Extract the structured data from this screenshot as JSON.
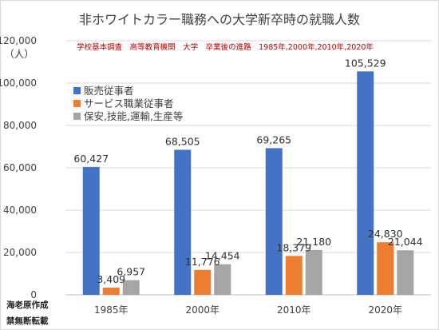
{
  "chart_data": {
    "type": "bar",
    "title": "非ホワイトカラー職務への大学新卒時の就職人数",
    "subtitle": "学校基本調査　高等教育機関　大学　卒業後の進路　1985年,2000年,2010年,2020年",
    "ylabel": "（人）",
    "xlabel": "",
    "categories": [
      "1985年",
      "2000年",
      "2010年",
      "2020年"
    ],
    "series": [
      {
        "name": "販売従事者",
        "color": "#4472c4",
        "values": [
          60427,
          68505,
          69265,
          105529
        ],
        "labels": [
          "60,427",
          "68,505",
          "69,265",
          "105,529"
        ]
      },
      {
        "name": "サービス職業従事者",
        "color": "#ed7d31",
        "values": [
          3409,
          11776,
          18379,
          24830
        ],
        "labels": [
          "3,409",
          "11,776",
          "18,379",
          "24,830"
        ]
      },
      {
        "name": "保安,技能,運輸,生産等",
        "color": "#a5a5a5",
        "values": [
          6957,
          14454,
          21180,
          21044
        ],
        "labels": [
          "6,957",
          "14,454",
          "21,180",
          "21,044"
        ]
      }
    ],
    "ylim": [
      0,
      120000
    ],
    "yticks": [
      0,
      20000,
      40000,
      60000,
      80000,
      100000,
      120000
    ],
    "ytick_labels": [
      "0",
      "20,000",
      "40,000",
      "60,000",
      "80,000",
      "100,000",
      "120,000"
    ],
    "grid": true,
    "legend_position": "top-left"
  },
  "credits": [
    "海老原作成",
    "禁無断転載"
  ]
}
